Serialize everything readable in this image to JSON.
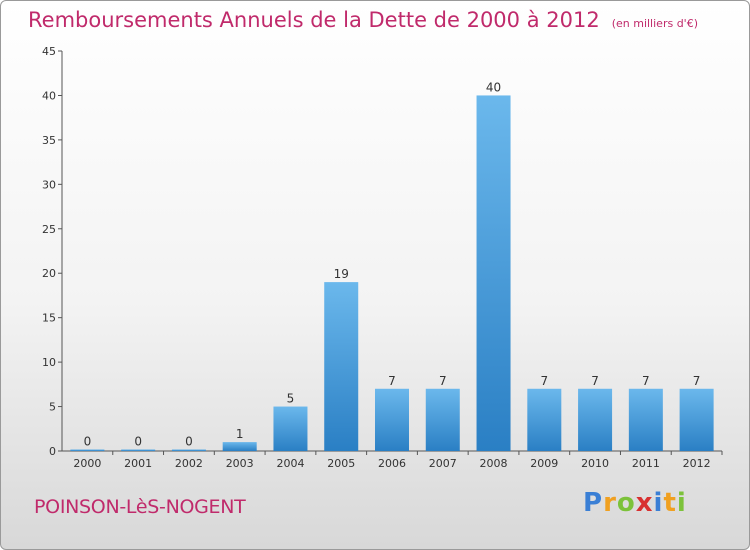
{
  "header": {
    "title": "Remboursements Annuels de la Dette de 2000 à 2012",
    "unit": "(en milliers d'€)"
  },
  "footer": {
    "commune": "POINSON-LèS-NOGENT",
    "logo_letters": [
      "P",
      "r",
      "o",
      "x",
      "i",
      "t",
      "i"
    ],
    "logo_colors": [
      "#3a7fd5",
      "#f0a020",
      "#7cc23a",
      "#d83030",
      "#3a7fd5",
      "#f0a020",
      "#7cc23a"
    ]
  },
  "colors": {
    "title": "#c02a6b",
    "bar_light": "#6bb8ec",
    "bar_dark": "#2a7fc4",
    "axis": "#555555"
  },
  "chart_data": {
    "type": "bar",
    "title": "Remboursements Annuels de la Dette de 2000 à 2012",
    "subtitle": "(en milliers d'€)",
    "categories": [
      "2000",
      "2001",
      "2002",
      "2003",
      "2004",
      "2005",
      "2006",
      "2007",
      "2008",
      "2009",
      "2010",
      "2011",
      "2012"
    ],
    "values": [
      0,
      0,
      0,
      1,
      5,
      19,
      7,
      7,
      40,
      7,
      7,
      7,
      7
    ],
    "data_labels": [
      "0",
      "0",
      "0",
      "1",
      "5",
      "19",
      "7",
      "7",
      "40",
      "7",
      "7",
      "7",
      "7"
    ],
    "ylim": [
      0,
      45
    ],
    "yticks": [
      0,
      5,
      10,
      15,
      20,
      25,
      30,
      35,
      40,
      45
    ],
    "xlabel": "",
    "ylabel": "",
    "grid": false,
    "legend": "none"
  }
}
